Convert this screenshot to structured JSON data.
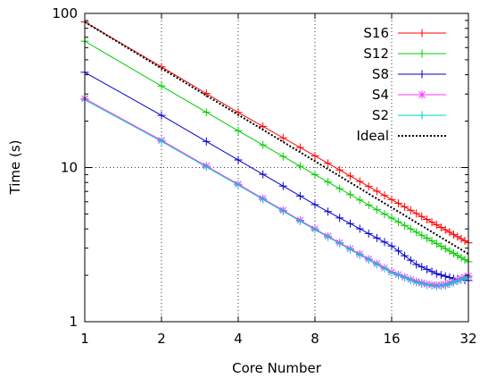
{
  "chart_data": {
    "type": "line",
    "title": "",
    "xlabel": "Core Number",
    "ylabel": "Time (s)",
    "x_scale": "log2",
    "y_scale": "log10",
    "xlim": [
      1,
      32
    ],
    "ylim": [
      1,
      100
    ],
    "x_ticks": [
      1,
      2,
      4,
      8,
      16,
      32
    ],
    "y_ticks": [
      1,
      10,
      100
    ],
    "grid": true,
    "legend_position": "top-right",
    "series": [
      {
        "name": "S16",
        "color": "#ff0000",
        "marker": "plus",
        "anchors": [
          [
            1,
            88
          ],
          [
            2,
            45
          ],
          [
            4,
            22.8
          ],
          [
            8,
            11.9
          ],
          [
            16,
            6.2
          ],
          [
            32,
            3.25
          ]
        ]
      },
      {
        "name": "S12",
        "color": "#00cc00",
        "marker": "plus",
        "anchors": [
          [
            1,
            66
          ],
          [
            2,
            33.8
          ],
          [
            4,
            17.3
          ],
          [
            8,
            9.0
          ],
          [
            16,
            4.7
          ],
          [
            32,
            2.45
          ]
        ]
      },
      {
        "name": "S8",
        "color": "#0000cc",
        "marker": "plus",
        "anchors": [
          [
            1,
            41.5
          ],
          [
            2,
            21.8
          ],
          [
            4,
            11.2
          ],
          [
            8,
            5.75
          ],
          [
            16,
            3.1
          ],
          [
            20,
            2.35
          ],
          [
            24,
            2.05
          ],
          [
            28,
            1.9
          ],
          [
            32,
            1.85
          ]
        ]
      },
      {
        "name": "S4",
        "color": "#ff33ff",
        "marker": "star",
        "anchors": [
          [
            1,
            28
          ],
          [
            2,
            15
          ],
          [
            4,
            7.8
          ],
          [
            8,
            4.0
          ],
          [
            16,
            2.1
          ],
          [
            20,
            1.82
          ],
          [
            22,
            1.75
          ],
          [
            24,
            1.72
          ],
          [
            26,
            1.74
          ],
          [
            28,
            1.82
          ],
          [
            32,
            1.98
          ]
        ]
      },
      {
        "name": "S2",
        "color": "#00cccc",
        "marker": "plus",
        "anchors": [
          [
            1,
            27.5
          ],
          [
            2,
            14.8
          ],
          [
            4,
            7.7
          ],
          [
            8,
            3.95
          ],
          [
            16,
            2.08
          ],
          [
            20,
            1.8
          ],
          [
            22,
            1.73
          ],
          [
            24,
            1.7
          ],
          [
            26,
            1.72
          ],
          [
            28,
            1.8
          ],
          [
            32,
            1.95
          ]
        ]
      },
      {
        "name": "Ideal",
        "color": "#000000",
        "marker": "none",
        "dashed": true,
        "anchors": [
          [
            1,
            88
          ],
          [
            32,
            2.75
          ]
        ]
      }
    ]
  }
}
